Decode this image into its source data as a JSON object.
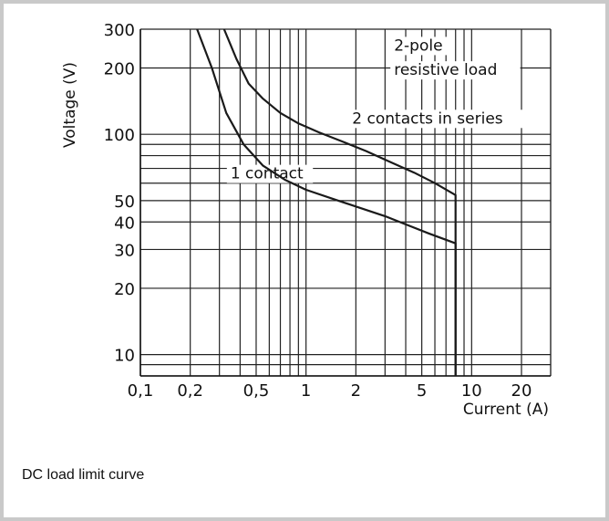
{
  "caption": "DC load limit curve",
  "chart_data": {
    "type": "line",
    "title": "",
    "xlabel": "Current (A)",
    "ylabel": "Voltage (V)",
    "xscale": "log",
    "yscale": "log",
    "xlim": [
      0.1,
      30
    ],
    "ylim": [
      8,
      300
    ],
    "x_ticks": [
      0.1,
      0.2,
      0.5,
      1,
      2,
      5,
      10,
      20
    ],
    "x_tick_labels": [
      "0,1",
      "0,2",
      "0,5",
      "1",
      "2",
      "5",
      "10",
      "20"
    ],
    "y_ticks": [
      10,
      20,
      30,
      40,
      50,
      100,
      200,
      300
    ],
    "y_tick_labels": [
      "10",
      "20",
      "30",
      "40",
      "50",
      "100",
      "200",
      "300"
    ],
    "grid": true,
    "line_color": "#1a1a1a",
    "series": [
      {
        "name": "1 contact",
        "x": [
          0.22,
          0.27,
          0.33,
          0.42,
          0.55,
          0.75,
          1.0,
          1.5,
          2.0,
          3.0,
          4.0,
          5.5,
          8.0,
          8.0
        ],
        "y": [
          300,
          200,
          125,
          90,
          72,
          62,
          56,
          50.5,
          47,
          42.5,
          39,
          35.5,
          32,
          8
        ]
      },
      {
        "name": "2 contacts in series",
        "x": [
          0.32,
          0.38,
          0.45,
          0.55,
          0.7,
          0.9,
          1.2,
          1.7,
          2.3,
          3.2,
          4.5,
          6.0,
          8.0,
          8.0
        ],
        "y": [
          300,
          220,
          170,
          145,
          125,
          112,
          102,
          92,
          84,
          75,
          67,
          60,
          53,
          8
        ]
      }
    ],
    "annotations": [
      {
        "text": "2-pole",
        "x": 3.4,
        "y": 240
      },
      {
        "text": "resistive load",
        "x": 3.4,
        "y": 186
      },
      {
        "text": "2 contacts in series",
        "x": 1.9,
        "y": 112
      },
      {
        "text": "1 contact",
        "x": 0.35,
        "y": 63
      }
    ]
  }
}
